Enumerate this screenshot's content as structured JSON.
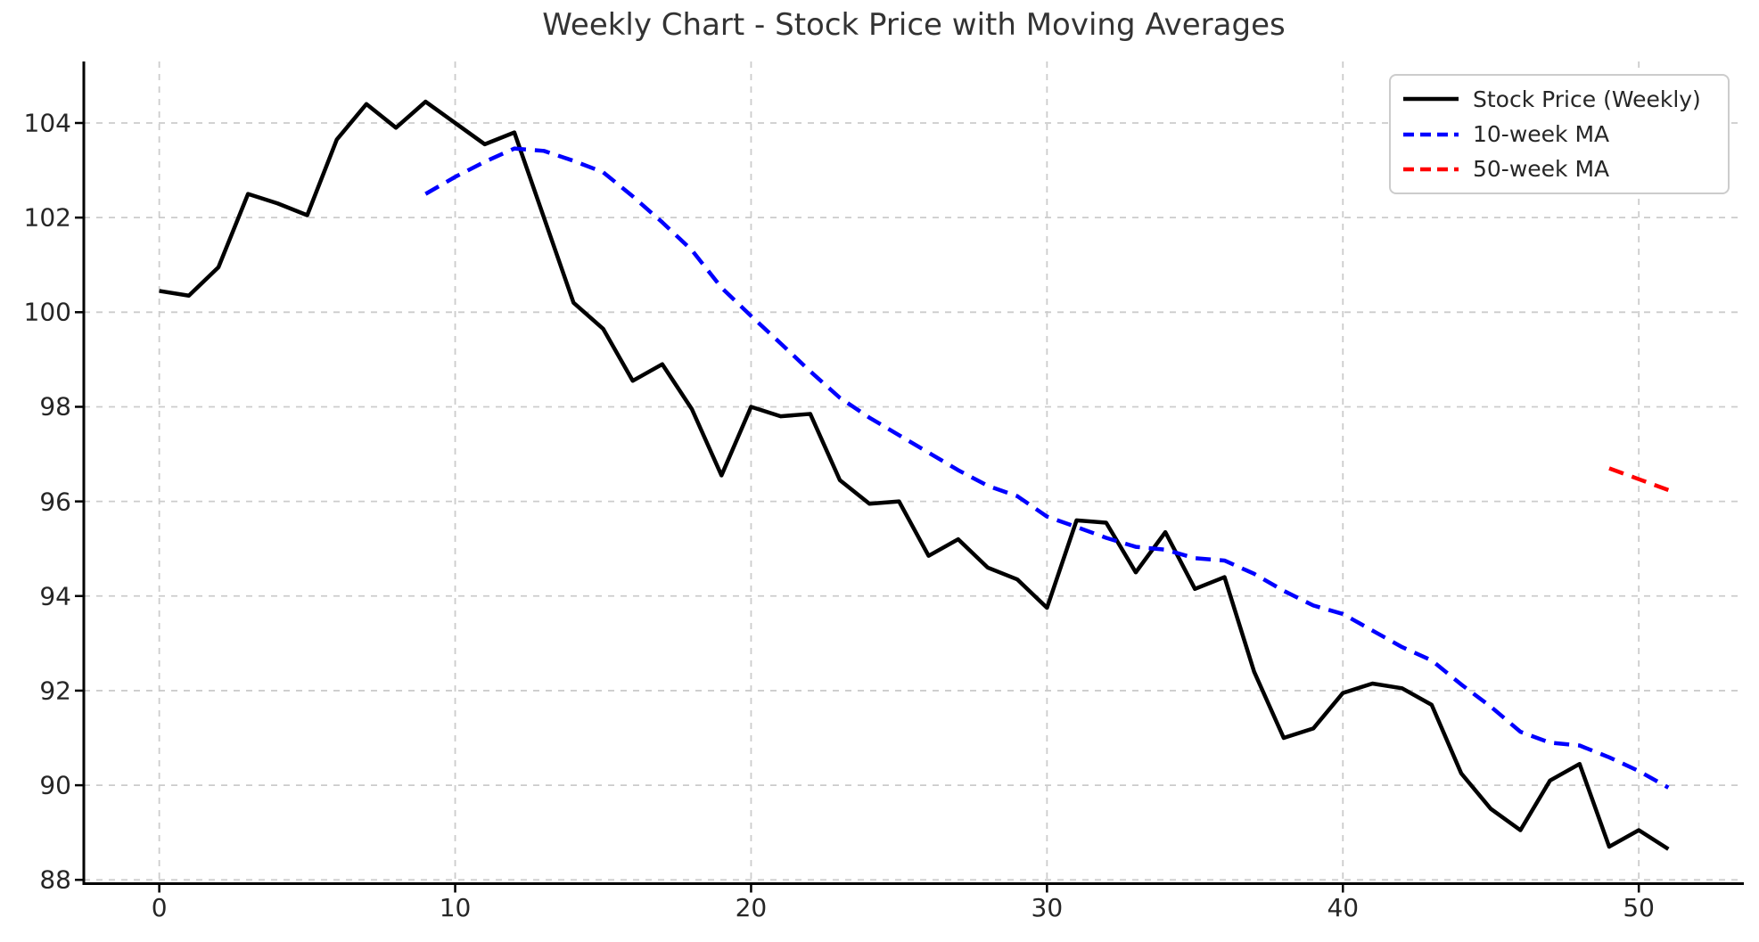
{
  "title": "Weekly Chart - Stock Price with Moving Averages",
  "colors": {
    "price": "#000000",
    "ma10": "#0000ff",
    "ma50": "#ff0000",
    "grid": "#cccccc",
    "spine": "#000000",
    "tick_text": "#262626",
    "title_text": "#333333",
    "background": "#ffffff",
    "legend_border": "#cccccc"
  },
  "legend": {
    "position": "upper right",
    "items": [
      {
        "label": "Stock Price (Weekly)",
        "color": "#000000",
        "dash": "solid"
      },
      {
        "label": "10-week MA",
        "color": "#0000ff",
        "dash": "dashed"
      },
      {
        "label": "50-week MA",
        "color": "#ff0000",
        "dash": "dashed"
      }
    ]
  },
  "chart_data": {
    "type": "line",
    "title": "Weekly Chart - Stock Price with Moving Averages",
    "xlabel": "",
    "ylabel": "",
    "grid": true,
    "legend_position": "upper right",
    "xlim": [
      -2.55,
      53.55
    ],
    "ylim": [
      87.92,
      105.3
    ],
    "xticks": [
      0,
      10,
      20,
      30,
      40,
      50
    ],
    "yticks": [
      88,
      90,
      92,
      94,
      96,
      98,
      100,
      102,
      104
    ],
    "x_unit": "week",
    "series": [
      {
        "name": "Stock Price (Weekly)",
        "color": "#000000",
        "style": "solid",
        "x_start": 0,
        "values": [
          100.45,
          100.35,
          100.95,
          102.5,
          102.3,
          102.05,
          103.65,
          104.4,
          103.9,
          104.45,
          104.0,
          103.55,
          103.8,
          102.0,
          100.2,
          99.65,
          98.55,
          98.9,
          97.95,
          96.55,
          98.0,
          97.8,
          97.85,
          96.45,
          95.95,
          96.0,
          94.85,
          95.2,
          94.6,
          94.35,
          93.75,
          95.6,
          95.55,
          94.5,
          95.35,
          94.15,
          94.4,
          92.4,
          91.0,
          91.2,
          91.95,
          92.15,
          92.05,
          91.7,
          90.25,
          89.5,
          89.05,
          90.1,
          90.45,
          88.7,
          89.05,
          88.65
        ]
      },
      {
        "name": "10-week MA",
        "color": "#0000ff",
        "style": "dashed",
        "x_start": 9,
        "values": [
          102.5,
          102.86,
          103.18,
          103.46,
          103.41,
          103.2,
          102.96,
          102.45,
          101.9,
          101.31,
          100.52,
          99.92,
          99.34,
          98.75,
          98.19,
          97.77,
          97.4,
          97.03,
          96.66,
          96.33,
          96.11,
          95.68,
          95.46,
          95.23,
          95.04,
          94.98,
          94.8,
          94.75,
          94.47,
          94.11,
          93.8,
          93.62,
          93.27,
          92.92,
          92.64,
          92.13,
          91.66,
          91.13,
          90.9,
          90.84,
          90.59,
          90.3,
          89.95
        ]
      },
      {
        "name": "50-week MA",
        "color": "#ff0000",
        "style": "dashed",
        "x_start": 49,
        "values": [
          96.7,
          96.47,
          96.24
        ]
      }
    ]
  }
}
